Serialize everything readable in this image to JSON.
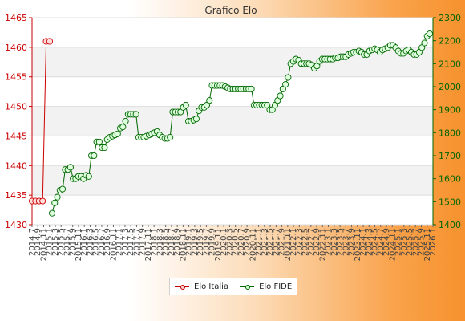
{
  "chart_data": {
    "type": "line",
    "title": "Grafico Elo",
    "left_axis": {
      "range": [
        1430,
        1465
      ],
      "ticks": [
        1430,
        1435,
        1440,
        1445,
        1450,
        1455,
        1460,
        1465
      ],
      "color": "#cc0000"
    },
    "right_axis": {
      "range": [
        1400,
        2300
      ],
      "ticks": [
        1400,
        1500,
        1600,
        1700,
        1800,
        1900,
        2000,
        2100,
        2200,
        2300
      ],
      "color": "#006600"
    },
    "grid": true,
    "legend_position": "bottom",
    "series": [
      {
        "name": "Elo Italia",
        "axis": "left",
        "color": "#cc0000",
        "values": [
          1434,
          1434,
          1434,
          1434,
          1461,
          1461
        ]
      },
      {
        "name": "Elo FIDE",
        "axis": "right",
        "color": "#006600",
        "values": [
          1450,
          1495,
          1520,
          1550,
          1555,
          1640,
          1640,
          1650,
          1600,
          1600,
          1610,
          1610,
          1600,
          1615,
          1610,
          1700,
          1700,
          1760,
          1760,
          1735,
          1735,
          1770,
          1780,
          1785,
          1790,
          1795,
          1820,
          1825,
          1850,
          1880,
          1880,
          1880,
          1880,
          1780,
          1780,
          1780,
          1785,
          1790,
          1795,
          1800,
          1805,
          1790,
          1780,
          1775,
          1775,
          1780,
          1890,
          1890,
          1890,
          1890,
          1910,
          1920,
          1850,
          1850,
          1855,
          1860,
          1895,
          1910,
          1910,
          1920,
          1940,
          2005,
          2005,
          2005,
          2005,
          2005,
          2000,
          1995,
          1990,
          1990,
          1990,
          1990,
          1990,
          1990,
          1990,
          1990,
          1990,
          1920,
          1920,
          1920,
          1920,
          1920,
          1920,
          1900,
          1900,
          1920,
          1940,
          1960,
          1990,
          2010,
          2040,
          2100,
          2110,
          2120,
          2115,
          2100,
          2100,
          2100,
          2100,
          2095,
          2080,
          2090,
          2110,
          2120,
          2120,
          2120,
          2120,
          2120,
          2125,
          2125,
          2130,
          2130,
          2130,
          2140,
          2145,
          2150,
          2150,
          2155,
          2150,
          2140,
          2140,
          2155,
          2160,
          2165,
          2160,
          2150,
          2160,
          2165,
          2170,
          2180,
          2180,
          2170,
          2155,
          2145,
          2145,
          2155,
          2160,
          2150,
          2140,
          2140,
          2150,
          2170,
          2190,
          2220,
          2230
        ]
      }
    ],
    "x_ticks": [
      "2014.7",
      "2014.9",
      "2014.11",
      "2015.1",
      "2015.3",
      "2015.5",
      "2015.7",
      "2015.9",
      "2015.11",
      "2016.1",
      "2016.3",
      "2016.5",
      "2016.7",
      "2016.9",
      "2016.11",
      "2017.1",
      "2017.3",
      "2017.5",
      "2017.7",
      "2017.9",
      "2017.11",
      "2018.1",
      "2018.3",
      "2018.5",
      "2018.7",
      "2018.9",
      "2018.11",
      "2019.1",
      "2019.3",
      "2019.5",
      "2019.7",
      "2019.9",
      "2019.11",
      "2020.1",
      "2020.3",
      "2020.5",
      "2020.7",
      "2020.9",
      "2020.11",
      "2021.1",
      "2021.3",
      "2021.5",
      "2021.7",
      "2021.9",
      "2021.11",
      "2022.1",
      "2022.3",
      "2022.5",
      "2022.7",
      "2022.9",
      "2022.11",
      "2023.1",
      "2023.3",
      "2023.5",
      "2023.7",
      "2023.9",
      "2023.11",
      "2024.1",
      "2024.3",
      "2024.5",
      "2024.7",
      "2024.9",
      "2024.11",
      "2025.1",
      "2025.3",
      "2025.5",
      "2025.7",
      "2025.9",
      "2025.11",
      "2026.1"
    ]
  }
}
